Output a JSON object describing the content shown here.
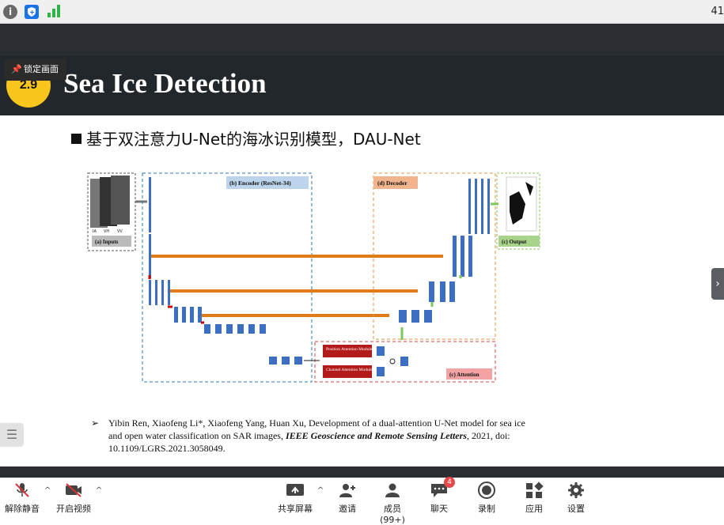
{
  "topbar": {
    "number": "41",
    "icons": [
      "info-icon",
      "shield-icon",
      "signal-icon"
    ]
  },
  "lock_tip": "锁定画面",
  "slide": {
    "badge": "2.9",
    "title": "Sea Ice Detection",
    "bullet": "基于双注意力U-Net的海冰识别模型，DAU-Net"
  },
  "diagram": {
    "encoder_label": "(b) Encoder (ResNet-34)",
    "decoder_label": "(d) Decoder",
    "inputs_label": "(a) Inputs",
    "output_label": "(c) Output",
    "attention_label": "(c) Attention",
    "position_module": "Position Attention Module",
    "channel_module": "Channel Attention Module",
    "input_channels": [
      "IA",
      "VH",
      "VV"
    ]
  },
  "reference": {
    "arrow": "➢",
    "text_plain": "Yibin Ren, Xiaofeng Li*, Xiaofeng Yang, Huan Xu, Development of a dual-attention U-Net model for sea ice and open water classification on SAR images, ",
    "journal": "IEEE Geoscience and Remote Sensing Letters",
    "text_tail": ", 2021, doi: 10.1109/LGRS.2021.3058049."
  },
  "toolbar": {
    "unmute": "解除静音",
    "video": "开启视频",
    "share": "共享屏幕",
    "invite": "邀请",
    "members": "成员(99+)",
    "chat": "聊天",
    "chat_badge": "4",
    "record": "录制",
    "apps": "应用",
    "settings": "设置"
  }
}
